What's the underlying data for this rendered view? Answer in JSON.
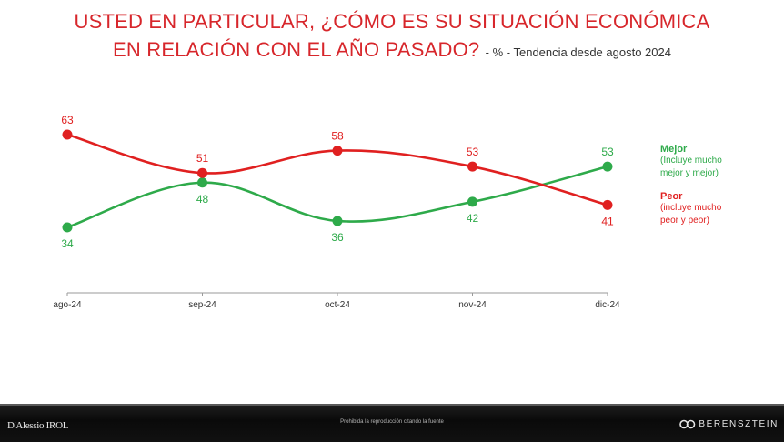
{
  "title": {
    "line1": "USTED EN PARTICULAR, ¿CÓMO ES SU SITUACIÓN ECONÓMICA",
    "line2": "EN RELACIÓN CON EL AÑO PASADO?",
    "subtitle": "- % - Tendencia desde agosto 2024"
  },
  "chart_data": {
    "type": "line",
    "categories": [
      "ago-24",
      "sep-24",
      "oct-24",
      "nov-24",
      "dic-24"
    ],
    "series": [
      {
        "name": "Peor",
        "values": [
          63,
          51,
          58,
          53,
          41
        ],
        "color": "#e02020"
      },
      {
        "name": "Mejor",
        "values": [
          34,
          48,
          36,
          42,
          53
        ],
        "color": "#2eaa4a"
      }
    ],
    "ylim": [
      20,
      75
    ],
    "grid": false,
    "legend_placement": "right"
  },
  "legend": {
    "mejor": {
      "label": "Mejor",
      "desc_line1": "(Incluye mucho",
      "desc_line2": "mejor y mejor)",
      "color": "#2eaa4a"
    },
    "peor": {
      "label": "Peor",
      "desc_line1": "(incluye mucho",
      "desc_line2": "peor y peor)",
      "color": "#e02020"
    }
  },
  "footer": {
    "left_logo_text": "D'Alessio IROL",
    "center_text": "Prohibida la reproducción citando la fuente",
    "right_logo_text": "BERENSZTEIN"
  }
}
